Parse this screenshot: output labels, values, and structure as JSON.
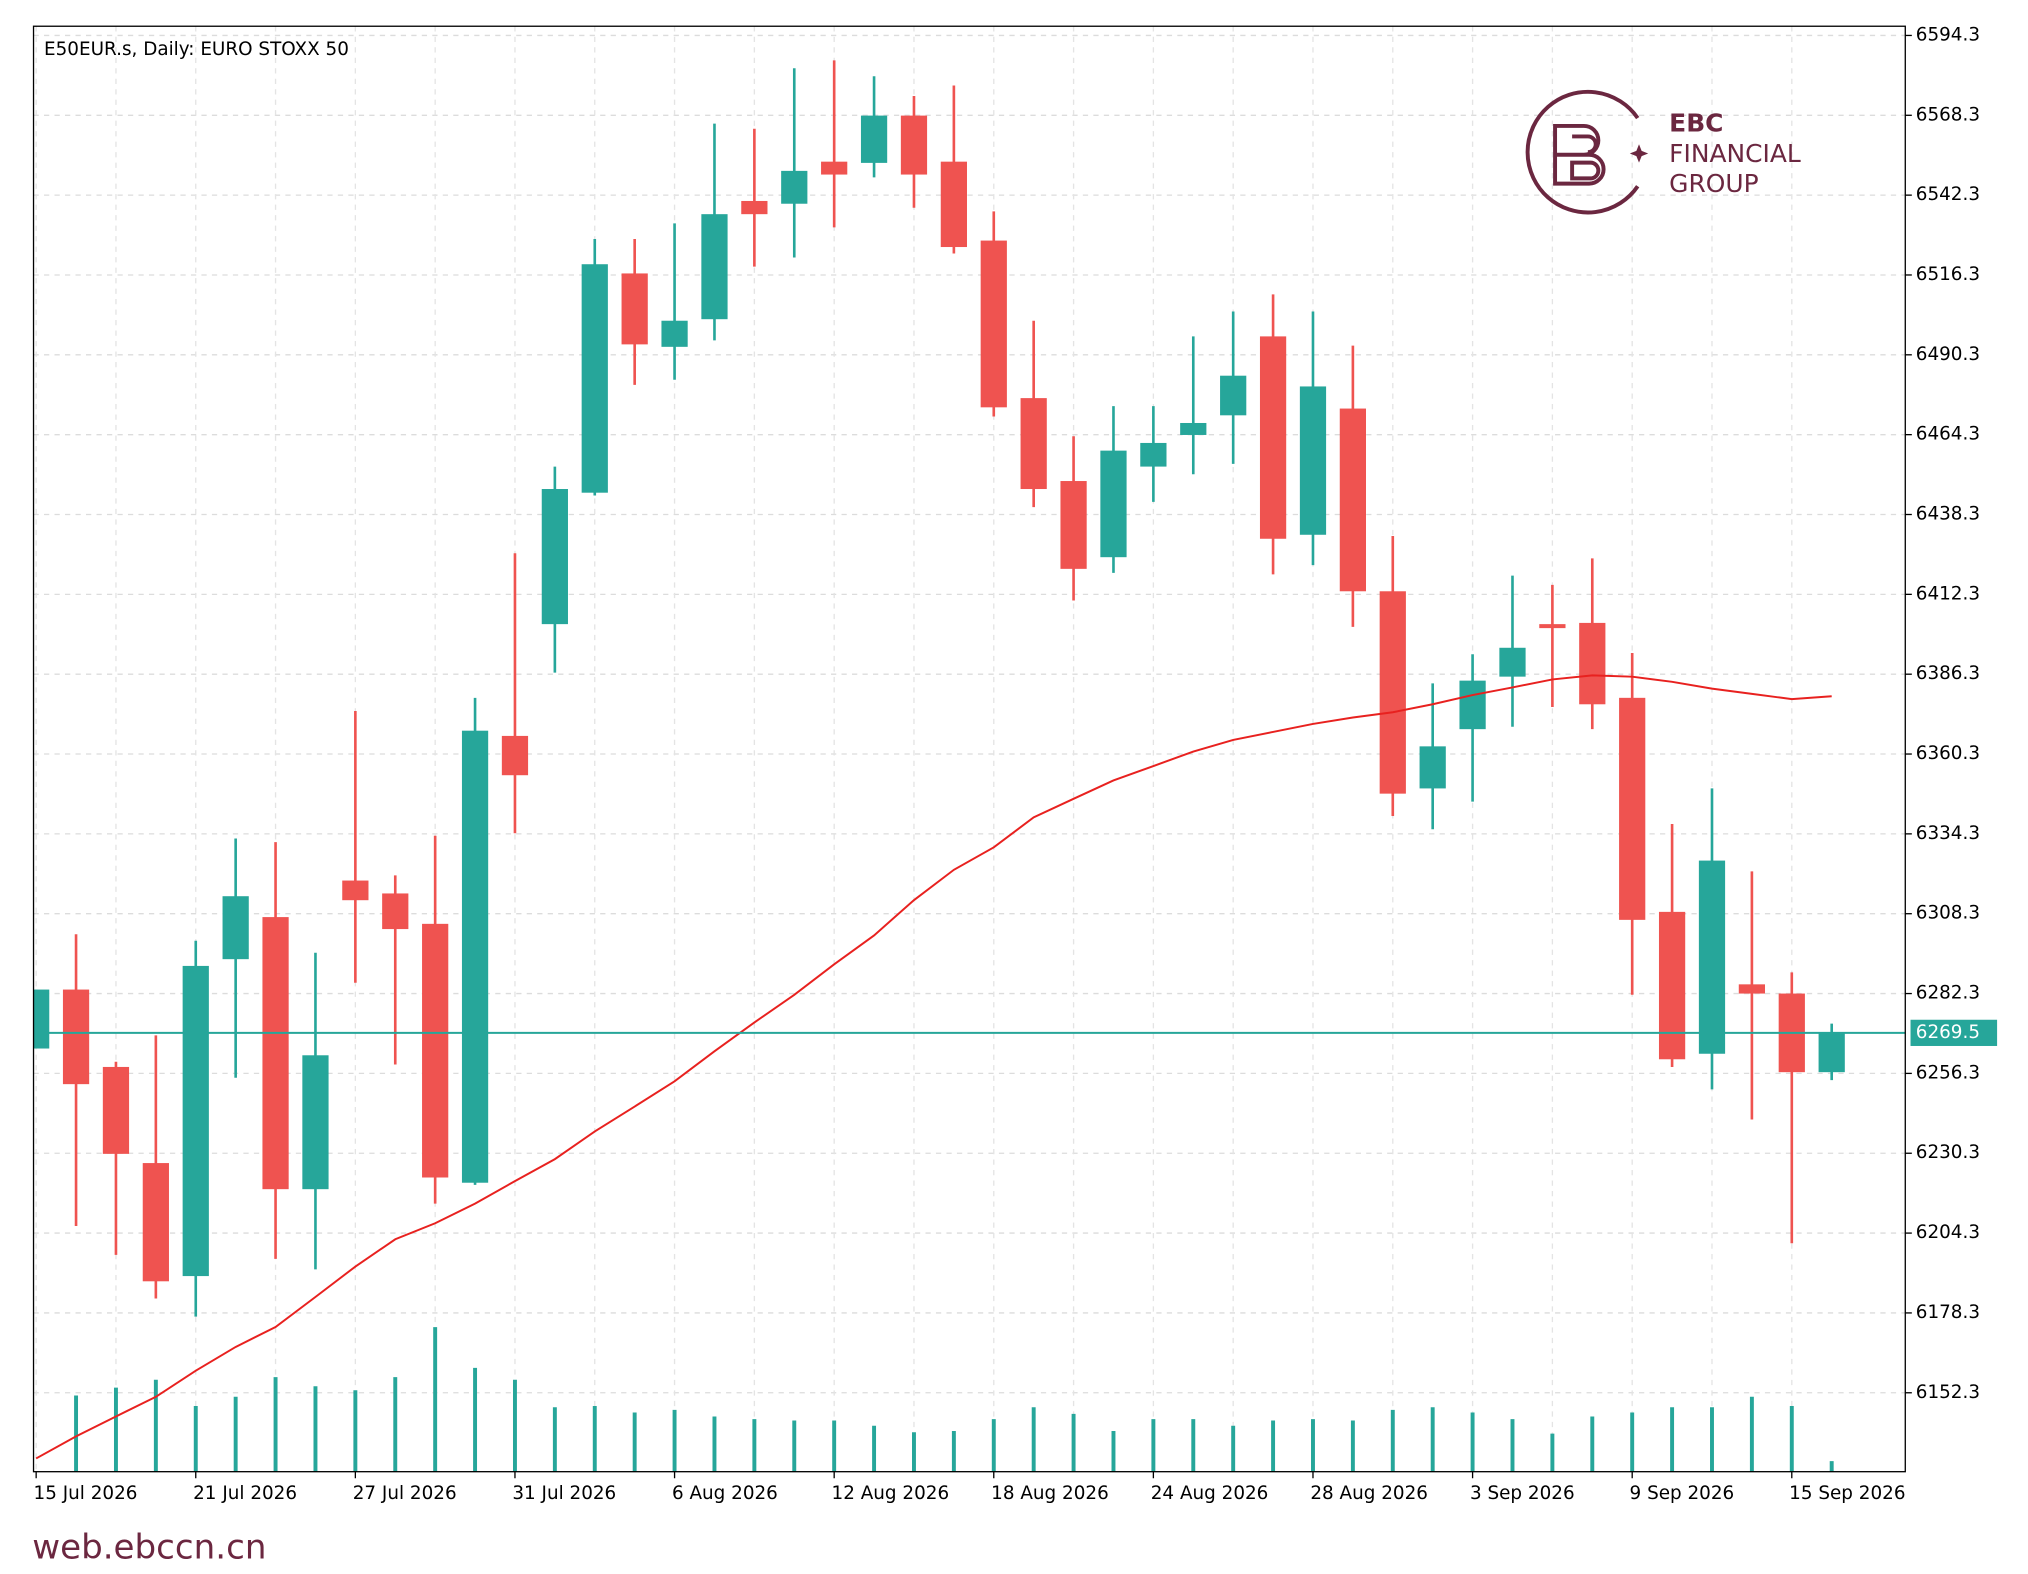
{
  "chart_data": {
    "type": "candlestick",
    "title": "E50EUR.s, Daily:  EURO STOXX 50",
    "categories": [
      "15 Jul 2026",
      null,
      null,
      null,
      "21 Jul 2026",
      null,
      null,
      null,
      "27 Jul 2026",
      null,
      null,
      null,
      "31 Jul 2026",
      null,
      null,
      null,
      "6 Aug 2026",
      null,
      null,
      null,
      "12 Aug 2026",
      null,
      null,
      null,
      "18 Aug 2026",
      null,
      null,
      null,
      "24 Aug 2026",
      null,
      null,
      null,
      "28 Aug 2026",
      null,
      null,
      null,
      "3 Sep 2026",
      null,
      null,
      null,
      "9 Sep 2026",
      null,
      null,
      null,
      "15 Sep 2026",
      null
    ],
    "open": [
      6264.4,
      6283.6,
      6258.4,
      6227.1,
      6190.3,
      6293.5,
      6307.2,
      6218.6,
      6319.1,
      6314.9,
      6305.0,
      6220.7,
      6366.2,
      6402.6,
      6445.4,
      6516.8,
      6492.9,
      6501.9,
      6540.4,
      6539.5,
      6553.2,
      6552.8,
      6568.2,
      6553.2,
      6527.5,
      6476.2,
      6449.2,
      6424.4,
      6453.9,
      6464.2,
      6470.6,
      6496.3,
      6431.7,
      6472.8,
      6413.3,
      6349.1,
      6368.4,
      6385.5,
      6402.6,
      6403.0,
      6378.6,
      6308.9,
      6262.7,
      6285.3,
      6282.3,
      6256.7
    ],
    "high": [
      6283.6,
      6301.6,
      6260.1,
      6268.7,
      6299.5,
      6332.8,
      6331.6,
      6295.6,
      6374.3,
      6320.8,
      6333.7,
      6378.6,
      6425.7,
      6453.9,
      6528.0,
      6528.0,
      6533.1,
      6565.6,
      6563.9,
      6583.6,
      6586.2,
      6581.0,
      6574.6,
      6578.0,
      6537.0,
      6501.4,
      6463.8,
      6473.6,
      6473.6,
      6496.3,
      6504.4,
      6510.0,
      6504.4,
      6493.3,
      6431.3,
      6383.3,
      6392.8,
      6418.4,
      6415.4,
      6424.0,
      6393.2,
      6337.5,
      6349.1,
      6322.1,
      6289.2,
      6272.5
    ],
    "low": [
      6264.4,
      6206.6,
      6197.2,
      6183.0,
      6177.1,
      6254.9,
      6195.9,
      6192.5,
      6285.8,
      6259.2,
      6213.9,
      6220.0,
      6334.5,
      6386.8,
      6444.5,
      6480.5,
      6482.2,
      6495.0,
      6519.0,
      6522.0,
      6531.8,
      6548.1,
      6538.2,
      6523.3,
      6470.2,
      6440.7,
      6410.3,
      6419.3,
      6442.4,
      6451.4,
      6454.8,
      6418.8,
      6421.8,
      6401.7,
      6340.1,
      6335.8,
      6344.8,
      6369.2,
      6375.6,
      6368.4,
      6281.9,
      6258.4,
      6251.1,
      6241.3,
      6201.0,
      6254.1
    ],
    "close": [
      6283.6,
      6252.8,
      6230.1,
      6188.6,
      6291.3,
      6314.0,
      6218.6,
      6262.2,
      6312.7,
      6303.3,
      6222.4,
      6367.9,
      6353.4,
      6446.6,
      6519.8,
      6493.7,
      6501.4,
      6536.1,
      6536.1,
      6550.2,
      6549.0,
      6568.2,
      6549.0,
      6525.4,
      6473.2,
      6446.6,
      6420.6,
      6459.1,
      6461.6,
      6468.1,
      6483.5,
      6430.4,
      6480.0,
      6413.3,
      6347.4,
      6362.8,
      6384.2,
      6394.9,
      6401.3,
      6376.5,
      6306.3,
      6260.9,
      6325.6,
      6282.3,
      6256.7,
      6269.5
    ],
    "volume": [
      null,
      58,
      64,
      70,
      50,
      57,
      72,
      65,
      62,
      72,
      110,
      79,
      70,
      49,
      50,
      45,
      47,
      42,
      40,
      39,
      39,
      35,
      30,
      31,
      40,
      49,
      44,
      31,
      40,
      40,
      35,
      39,
      40,
      39,
      47,
      49,
      45,
      40,
      29,
      42,
      45,
      49,
      49,
      57,
      50,
      8
    ],
    "volume_ylim": [
      0,
      1100
    ],
    "ma": {
      "color": "#e8211f",
      "values": [
        6130.9,
        6138.1,
        6144.6,
        6151.0,
        6159.5,
        6167.2,
        6173.7,
        6183.5,
        6193.4,
        6202.3,
        6207.5,
        6213.9,
        6221.2,
        6228.4,
        6237.4,
        6245.5,
        6253.7,
        6263.5,
        6272.9,
        6281.9,
        6291.8,
        6301.2,
        6312.7,
        6322.6,
        6329.9,
        6339.7,
        6345.7,
        6351.7,
        6356.4,
        6361.1,
        6364.9,
        6367.5,
        6370.1,
        6372.2,
        6373.9,
        6376.5,
        6379.5,
        6382.0,
        6384.6,
        6385.9,
        6385.5,
        6383.8,
        6381.6,
        6379.9,
        6378.2,
        6379.1
      ]
    },
    "up_color": "#26a69a",
    "down_color": "#ef5350",
    "volume_color": "#26a69a",
    "current_price": 6269.5,
    "current_price_color": "#26a69a",
    "ylim": [
      6126.6,
      6597.3
    ],
    "yticks": [
      6152.3,
      6178.3,
      6204.3,
      6230.3,
      6256.3,
      6282.3,
      6308.3,
      6334.3,
      6360.3,
      6386.3,
      6412.3,
      6438.3,
      6464.3,
      6490.3,
      6516.3,
      6542.3,
      6568.3,
      6594.3
    ],
    "grid": true
  },
  "logo": {
    "brand": "EBC",
    "line2": "FINANCIAL",
    "line3": "GROUP"
  },
  "footer": "web.ebccn.cn"
}
